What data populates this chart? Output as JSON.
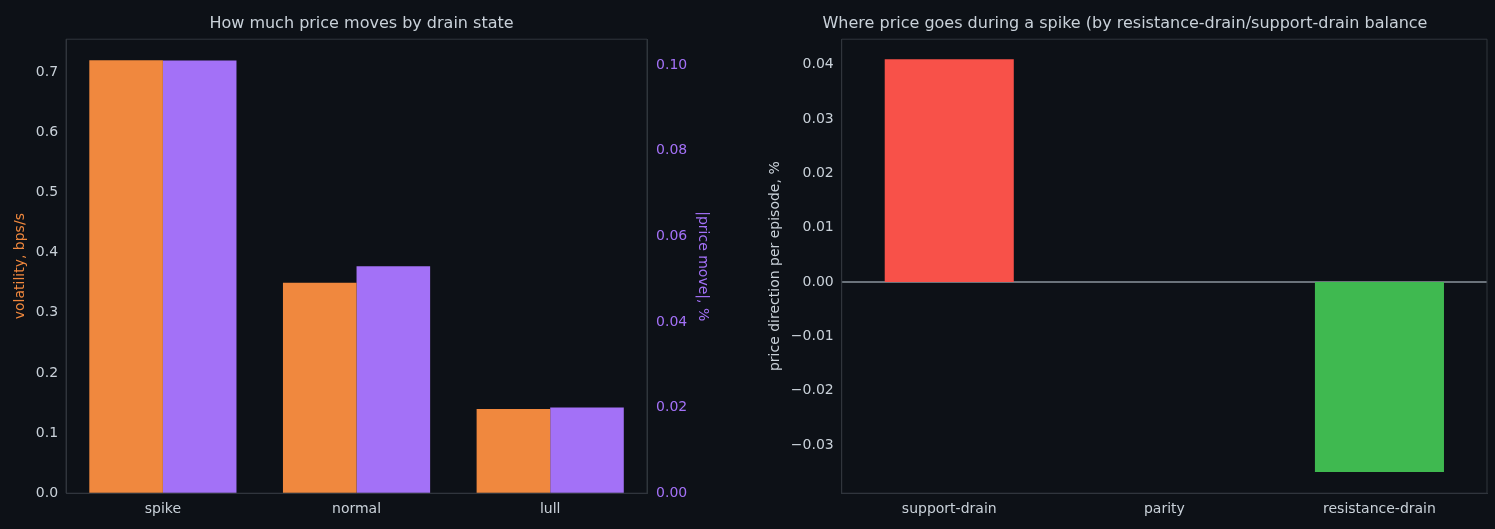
{
  "chart_data": [
    {
      "type": "bar",
      "title": "How much price moves by drain state",
      "categories": [
        "spike",
        "normal",
        "lull"
      ],
      "ylabel": "volatility, bps/s",
      "y2label": "|price move|, %",
      "series": [
        {
          "color": "#f0883e",
          "values": [
            0.72,
            0.35,
            0.14
          ]
        },
        {
          "color": "#a371f7",
          "values": [
            0.101,
            0.053,
            0.02
          ],
          "axis": "y2"
        }
      ],
      "ylim": [
        0,
        0.755
      ],
      "yticks": [
        {
          "value": 0,
          "label": "0.0"
        },
        {
          "value": 0.1,
          "label": "0.1"
        },
        {
          "value": 0.2,
          "label": "0.2"
        },
        {
          "value": 0.3,
          "label": "0.3"
        },
        {
          "value": 0.4,
          "label": "0.4"
        },
        {
          "value": 0.5,
          "label": "0.5"
        },
        {
          "value": 0.6,
          "label": "0.6"
        },
        {
          "value": 0.7,
          "label": "0.7"
        }
      ],
      "y2lim": [
        0,
        0.106
      ],
      "y2ticks": [
        {
          "value": 0,
          "label": "0.00"
        },
        {
          "value": 0.02,
          "label": "0.02"
        },
        {
          "value": 0.04,
          "label": "0.04"
        },
        {
          "value": 0.06,
          "label": "0.06"
        },
        {
          "value": 0.08,
          "label": "0.08"
        },
        {
          "value": 0.1,
          "label": "0.10"
        }
      ],
      "grid": false,
      "legend": false
    },
    {
      "type": "bar",
      "title": "Where price goes during a spike (by resistance-drain/support-drain balance",
      "categories": [
        "support-drain",
        "parity",
        "resistance-drain"
      ],
      "ylabel": "price direction per episode, %",
      "values": [
        0.041,
        0,
        -0.035
      ],
      "colors": [
        "#f85149",
        "#8b949e",
        "#3fb950"
      ],
      "ylim": [
        -0.0389,
        0.0447
      ],
      "yticks": [
        {
          "value": -0.03,
          "label": "−0.03"
        },
        {
          "value": -0.02,
          "label": "−0.02"
        },
        {
          "value": -0.01,
          "label": "−0.01"
        },
        {
          "value": 0,
          "label": "0.00"
        },
        {
          "value": 0.01,
          "label": "0.01"
        },
        {
          "value": 0.02,
          "label": "0.02"
        },
        {
          "value": 0.03,
          "label": "0.03"
        },
        {
          "value": 0.04,
          "label": "0.04"
        }
      ],
      "ref_lines": [
        {
          "axis": "y",
          "value": 0,
          "color": "#8b949e"
        }
      ],
      "grid": false,
      "legend": false
    }
  ]
}
